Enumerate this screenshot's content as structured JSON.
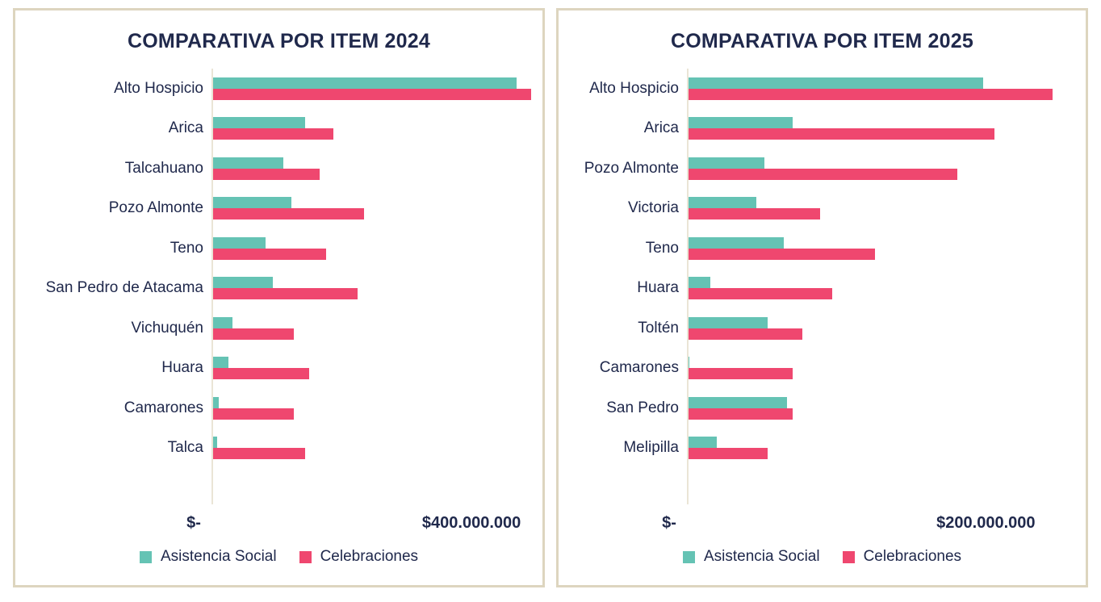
{
  "colors": {
    "text_navy": "#20294c",
    "teal": "#65c3b4",
    "pink": "#ef476f",
    "panel_border": "#ddd5bf",
    "axis_line": "#eae5d6",
    "background": "#ffffff"
  },
  "chart_data": [
    {
      "type": "bar",
      "orientation": "horizontal",
      "title": "COMPARATIVA POR ITEM 2024",
      "categories": [
        "Alto Hospicio",
        "Arica",
        "Talcahuano",
        "Pozo Almonte",
        "Teno",
        "San Pedro de Atacama",
        "Vichuquén",
        "Huara",
        "Camarones",
        "Talca"
      ],
      "series": [
        {
          "name": "Asistencia Social",
          "color": "#65c3b4",
          "values": [
            440000000,
            135000000,
            103000000,
            115000000,
            78000000,
            88000000,
            30000000,
            24000000,
            10000000,
            8000000
          ]
        },
        {
          "name": "Celebraciones",
          "color": "#ef476f",
          "values": [
            460000000,
            176000000,
            156000000,
            220000000,
            165000000,
            210000000,
            118000000,
            141000000,
            119000000,
            135000000
          ]
        }
      ],
      "xlabel": "",
      "ylabel": "",
      "xlim": [
        0,
        465000000
      ],
      "xticks": [
        {
          "value": 0,
          "label": "$-"
        },
        {
          "value": 400000000,
          "label": "$400.000.000"
        }
      ],
      "grid": false,
      "legend_position": "bottom"
    },
    {
      "type": "bar",
      "orientation": "horizontal",
      "title": "COMPARATIVA POR ITEM 2025",
      "categories": [
        "Alto Hospicio",
        "Arica",
        "Pozo Almonte",
        "Victoria",
        "Teno",
        "Huara",
        "Toltén",
        "Camarones",
        "San Pedro",
        "Melipilla"
      ],
      "series": [
        {
          "name": "Asistencia Social",
          "color": "#65c3b4",
          "values": [
            187000000,
            67000000,
            49000000,
            44000000,
            61000000,
            15000000,
            51000000,
            1500000,
            63000000,
            19000000
          ]
        },
        {
          "name": "Celebraciones",
          "color": "#ef476f",
          "values": [
            231000000,
            194000000,
            171000000,
            84000000,
            119000000,
            92000000,
            73000000,
            67000000,
            67000000,
            51000000
          ]
        }
      ],
      "xlabel": "",
      "ylabel": "",
      "xlim": [
        0,
        235000000
      ],
      "xticks": [
        {
          "value": 0,
          "label": "$-"
        },
        {
          "value": 200000000,
          "label": "$200.000.000"
        }
      ],
      "grid": false,
      "legend_position": "bottom"
    }
  ]
}
